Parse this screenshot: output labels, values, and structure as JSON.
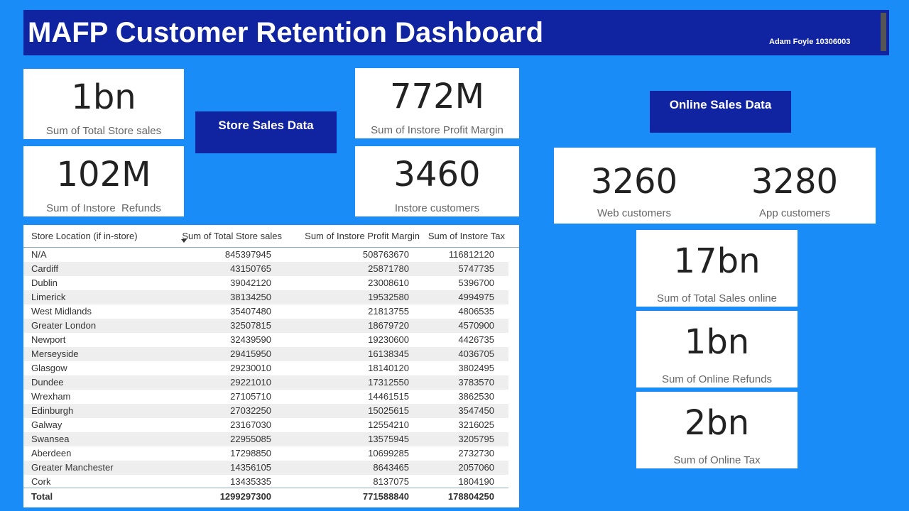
{
  "header": {
    "title": "MAFP Customer Retention Dashboard",
    "author": "Adam Foyle 10306003"
  },
  "store_cards": [
    {
      "value": "1bn",
      "label": "Sum of Total Store sales"
    },
    {
      "value": "102M",
      "label": "Sum of Instore  Refunds"
    },
    {
      "value": "772M",
      "label": "Sum of Instore Profit Margin"
    },
    {
      "value": "3460",
      "label": "Instore customers"
    }
  ],
  "buttons": [
    "Store Sales Data",
    "Online Sales Data"
  ],
  "customer_card": [
    {
      "value": "3260",
      "label": "Web customers"
    },
    {
      "value": "3280",
      "label": "App customers"
    }
  ],
  "online_cards": [
    {
      "value": "17bn",
      "label": "Sum of Total Sales online"
    },
    {
      "value": "1bn",
      "label": "Sum of Online Refunds"
    },
    {
      "value": "2bn",
      "label": "Sum of Online Tax"
    }
  ],
  "table": {
    "columns": [
      "Store Location (if in-store)",
      "Sum of Total Store sales",
      "Sum of Instore Profit Margin",
      "Sum of Instore Tax"
    ],
    "rows": [
      [
        "N/A",
        845397945,
        508763670,
        116812120
      ],
      [
        "Cardiff",
        43150765,
        25871780,
        5747735
      ],
      [
        "Dublin",
        39042120,
        23008610,
        5396700
      ],
      [
        "Limerick",
        38134250,
        19532580,
        4994975
      ],
      [
        "West Midlands",
        35407480,
        21813755,
        4806535
      ],
      [
        "Greater London",
        32507815,
        18679720,
        4570900
      ],
      [
        "Newport",
        32439590,
        19230600,
        4426735
      ],
      [
        "Merseyside",
        29415950,
        16138345,
        4036705
      ],
      [
        "Glasgow",
        29230010,
        18140120,
        3802495
      ],
      [
        "Dundee",
        29221010,
        17312550,
        3783570
      ],
      [
        "Wrexham",
        27105710,
        14461515,
        3862530
      ],
      [
        "Edinburgh",
        27032250,
        15025615,
        3547450
      ],
      [
        "Galway",
        23167030,
        12554210,
        3216025
      ],
      [
        "Swansea",
        22955085,
        13575945,
        3205795
      ],
      [
        "Aberdeen",
        17298850,
        10699285,
        2732730
      ],
      [
        "Greater Manchester",
        14356105,
        8643465,
        2057060
      ],
      [
        "Cork",
        13435335,
        8137075,
        1804190
      ]
    ],
    "total": [
      "Total",
      1299297300,
      771588840,
      178804250
    ]
  }
}
